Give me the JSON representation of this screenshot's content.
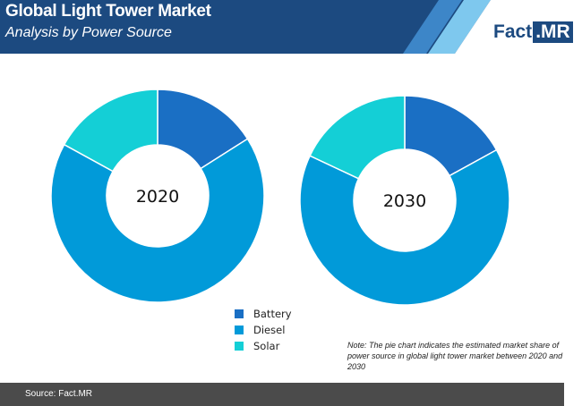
{
  "header": {
    "title": "Global Light Tower Market",
    "subtitle": "Analysis by Power Source"
  },
  "brand": {
    "part1": "Fact",
    "part2": ".MR"
  },
  "colors": {
    "header_bg": "#1c4a80",
    "battery": "#1a6fc4",
    "diesel": "#019ad9",
    "solar": "#14cfd6",
    "footer_bg": "#4b4b4b"
  },
  "chart_data": [
    {
      "type": "pie",
      "style": "donut",
      "center_label": "2020",
      "categories": [
        "Battery",
        "Diesel",
        "Solar"
      ],
      "values": [
        16,
        67,
        17
      ],
      "unit": "%"
    },
    {
      "type": "pie",
      "style": "donut",
      "center_label": "2030",
      "categories": [
        "Battery",
        "Diesel",
        "Solar"
      ],
      "values": [
        17,
        65,
        18
      ],
      "unit": "%"
    }
  ],
  "legend": {
    "items": [
      {
        "label": "Battery",
        "color": "#1a6fc4"
      },
      {
        "label": "Diesel",
        "color": "#019ad9"
      },
      {
        "label": "Solar",
        "color": "#14cfd6"
      }
    ]
  },
  "note": "Note: The pie chart indicates the estimated market share of power source in global light tower market between 2020 and 2030",
  "footer": {
    "source": "Source: Fact.MR"
  }
}
